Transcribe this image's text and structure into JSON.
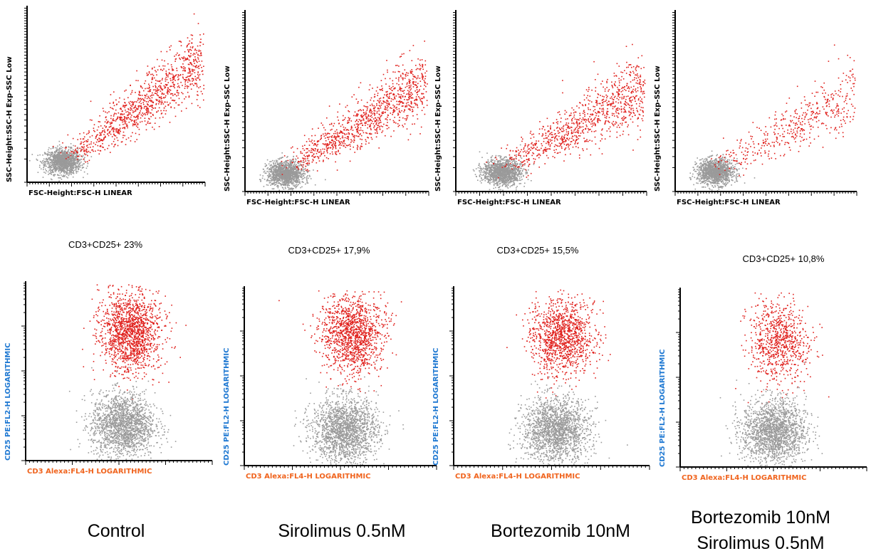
{
  "chart_data": [
    {
      "type": "scatter",
      "panel": "Control",
      "xlabel": "FSC-Height:FSC-H LINEAR",
      "ylabel": "SSC-Height:SSC-H Exp-SSC Low",
      "series": [
        {
          "color": "#9a9a9a",
          "center": [
            0.2,
            0.12
          ],
          "count": 1300
        },
        {
          "color": "#e0201c",
          "center": [
            0.65,
            0.42
          ],
          "count": 1100
        }
      ]
    },
    {
      "type": "scatter",
      "panel": "Sirolimus 0.5nM",
      "xlabel": "FSC-Height:FSC-H LINEAR",
      "ylabel": "SSC-Height:SSC-H Exp-SSC Low",
      "series": [
        {
          "color": "#9a9a9a",
          "center": [
            0.22,
            0.1
          ],
          "count": 1300
        },
        {
          "color": "#e0201c",
          "center": [
            0.62,
            0.36
          ],
          "count": 1100
        }
      ]
    },
    {
      "type": "scatter",
      "panel": "Bortezomib 10nM",
      "xlabel": "FSC-Height:FSC-H LINEAR",
      "ylabel": "SSC-Height:SSC-H Exp-SSC Low",
      "series": [
        {
          "color": "#9a9a9a",
          "center": [
            0.24,
            0.11
          ],
          "count": 1300
        },
        {
          "color": "#e0201c",
          "center": [
            0.62,
            0.34
          ],
          "count": 1000
        }
      ]
    },
    {
      "type": "scatter",
      "panel": "Bortezomib 10nM + Sirolimus 0.5nM",
      "xlabel": "FSC-Height:FSC-H LINEAR",
      "ylabel": "SSC-Height:SSC-H Exp-SSC Low",
      "series": [
        {
          "color": "#9a9a9a",
          "center": [
            0.22,
            0.11
          ],
          "count": 1300
        },
        {
          "color": "#e0201c",
          "center": [
            0.65,
            0.32
          ],
          "count": 500
        }
      ]
    },
    {
      "type": "scatter",
      "panel": "Control",
      "title": "CD3+CD25+ 23%",
      "percent_positive": 23,
      "xlabel": "CD3 Alexa:FL4-H LOGARITHMIC",
      "ylabel": "CD25 PE:FL2-H LOGARITHMIC",
      "series": [
        {
          "color": "#e0201c",
          "center": [
            0.56,
            0.72
          ],
          "count": 1500
        },
        {
          "color": "#9a9a9a",
          "center": [
            0.52,
            0.2
          ],
          "count": 1800
        }
      ]
    },
    {
      "type": "scatter",
      "panel": "Sirolimus 0.5nM",
      "title": "CD3+CD25+ 17,9%",
      "percent_positive": 17.9,
      "xlabel": "CD3 Alexa:FL4-H LOGARITHMIC",
      "ylabel": "CD25 PE:FL2-H LOGARITHMIC",
      "series": [
        {
          "color": "#e0201c",
          "center": [
            0.56,
            0.74
          ],
          "count": 1300
        },
        {
          "color": "#9a9a9a",
          "center": [
            0.52,
            0.2
          ],
          "count": 1800
        }
      ]
    },
    {
      "type": "scatter",
      "panel": "Bortezomib 10nM",
      "title": "CD3+CD25+ 15,5%",
      "percent_positive": 15.5,
      "xlabel": "CD3 Alexa:FL4-H LOGARITHMIC",
      "ylabel": "CD25 PE:FL2-H LOGARITHMIC",
      "series": [
        {
          "color": "#e0201c",
          "center": [
            0.55,
            0.72
          ],
          "count": 1200
        },
        {
          "color": "#9a9a9a",
          "center": [
            0.52,
            0.2
          ],
          "count": 1800
        }
      ]
    },
    {
      "type": "scatter",
      "panel": "Bortezomib 10nM + Sirolimus 0.5nM",
      "title": "CD3+CD25+ 10,8%",
      "percent_positive": 10.8,
      "xlabel": "CD3 Alexa:FL4-H LOGARITHMIC",
      "ylabel": "CD25 PE:FL2-H LOGARITHMIC",
      "series": [
        {
          "color": "#e0201c",
          "center": [
            0.53,
            0.7
          ],
          "count": 800
        },
        {
          "color": "#9a9a9a",
          "center": [
            0.5,
            0.2
          ],
          "count": 1800
        }
      ]
    }
  ],
  "conditions": [
    {
      "line1": "Control",
      "line2": ""
    },
    {
      "line1": "Sirolimus 0.5nM",
      "line2": ""
    },
    {
      "line1": "Bortezomib 10nM",
      "line2": ""
    },
    {
      "line1": "Bortezomib 10nM",
      "line2": "Sirolimus 0.5nM"
    }
  ],
  "colors": {
    "positive_events": "#e0201c",
    "negative_events": "#9a9a9a",
    "x_label_bottom": "#f0641e",
    "y_label_bottom": "#1e78d2",
    "axis": "#000000"
  }
}
